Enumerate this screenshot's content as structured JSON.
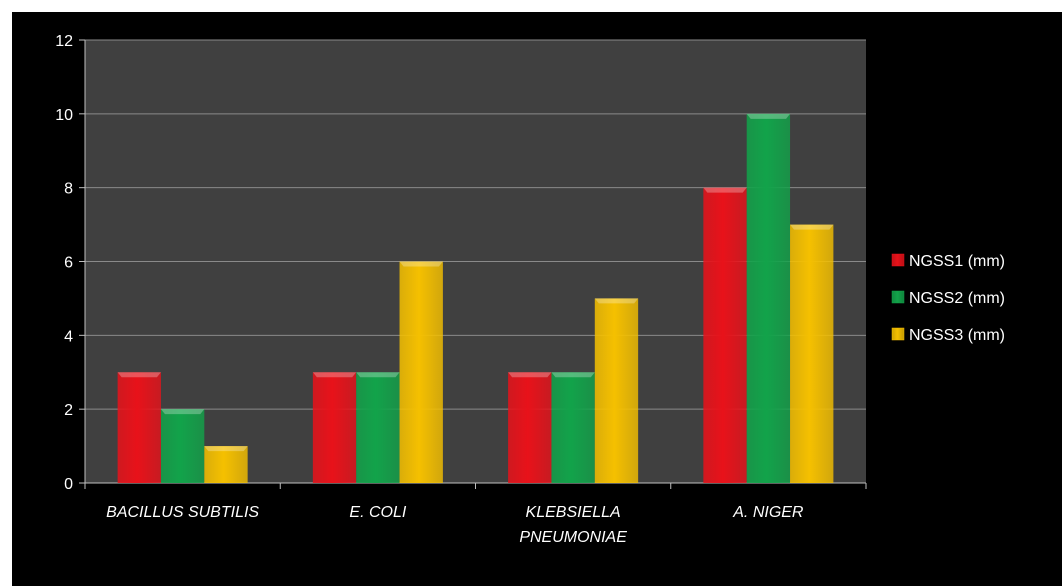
{
  "chart_data": {
    "type": "bar",
    "categories": [
      "BACILLUS SUBTILIS",
      "E. COLI",
      "KLEBSIELLA PNEUMONIAE",
      "A. NIGER"
    ],
    "series": [
      {
        "name": "NGSS1 (mm)",
        "values": [
          3,
          3,
          3,
          8
        ],
        "color": "#e8121a"
      },
      {
        "name": "NGSS2 (mm)",
        "values": [
          2,
          3,
          3,
          10
        ],
        "color": "#12a34a"
      },
      {
        "name": "NGSS3 (mm)",
        "values": [
          1,
          6,
          5,
          7
        ],
        "color": "#f5c000"
      }
    ],
    "ylim": [
      0,
      12
    ],
    "yticks": [
      "0",
      "2",
      "4",
      "6",
      "8",
      "10",
      "12"
    ],
    "title": "",
    "xlabel": "",
    "ylabel": "",
    "grid": true,
    "legend_position": "right",
    "background": "#000000",
    "plot_background": "#404040"
  }
}
